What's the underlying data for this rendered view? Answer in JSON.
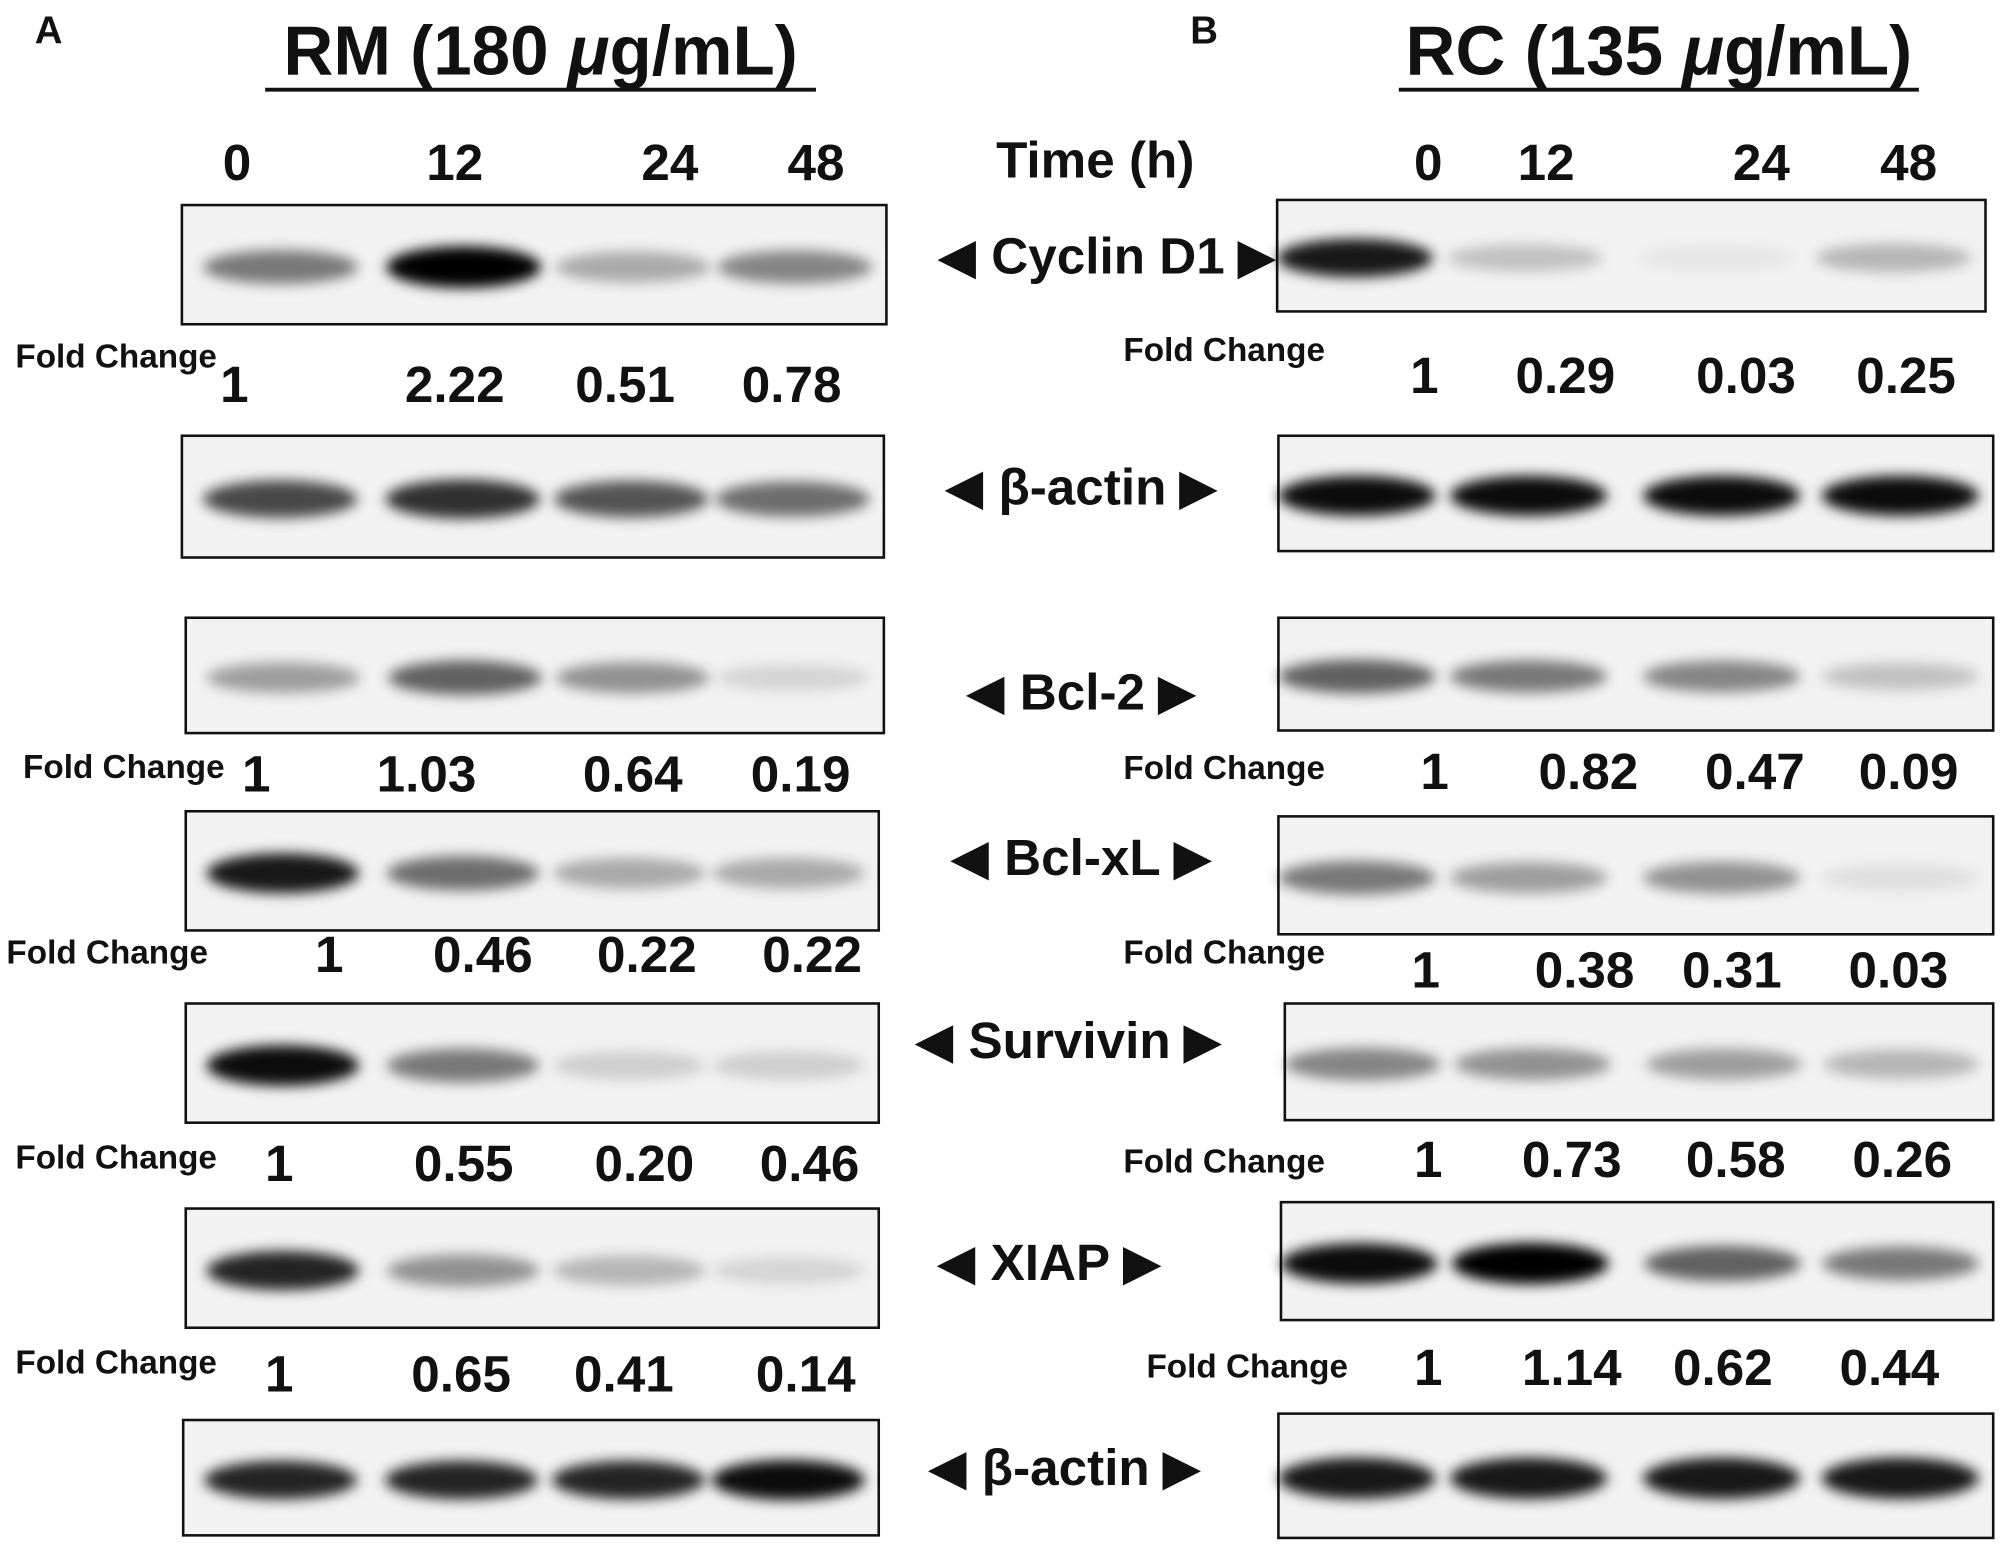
{
  "panels": [
    {
      "label": "A",
      "title": {
        "prefix": "RM (180 ",
        "unit_italic": "μ",
        "suffix": "g/mL)"
      },
      "time_points": [
        "0",
        "12",
        "24",
        "48"
      ],
      "blots": [
        {
          "fold_change": [
            "1",
            "2.22",
            "0.51",
            "0.78"
          ]
        },
        {
          "fold_change": [
            "1",
            "1.03",
            "0.64",
            "0.19"
          ]
        },
        {
          "fold_change": [
            "1",
            "0.46",
            "0.22",
            "0.22"
          ]
        },
        {
          "fold_change": [
            "1",
            "0.55",
            "0.20",
            "0.46"
          ]
        },
        {
          "fold_change": [
            "1",
            "0.65",
            "0.41",
            "0.14"
          ]
        }
      ]
    },
    {
      "label": "B",
      "title": {
        "prefix": "RC (135 ",
        "unit_italic": "μ",
        "suffix": "g/mL)"
      },
      "time_points": [
        "0",
        "12",
        "24",
        "48"
      ],
      "blots": [
        {
          "fold_change": [
            "1",
            "0.29",
            "0.03",
            "0.25"
          ]
        },
        {
          "fold_change": [
            "1",
            "0.82",
            "0.47",
            "0.09"
          ]
        },
        {
          "fold_change": [
            "1",
            "0.38",
            "0.31",
            "0.03"
          ]
        },
        {
          "fold_change": [
            "1",
            "0.73",
            "0.58",
            "0.26"
          ]
        },
        {
          "fold_change": [
            "1",
            "1.14",
            "0.62",
            "0.44"
          ]
        }
      ]
    }
  ],
  "time_axis_label": "Time (h)",
  "fold_change_label": "Fold Change",
  "markers": [
    "Cyclin D1",
    "β-actin",
    "Bcl-2",
    "Bcl-xL",
    "Survivin",
    "XIAP",
    "β-actin"
  ]
}
